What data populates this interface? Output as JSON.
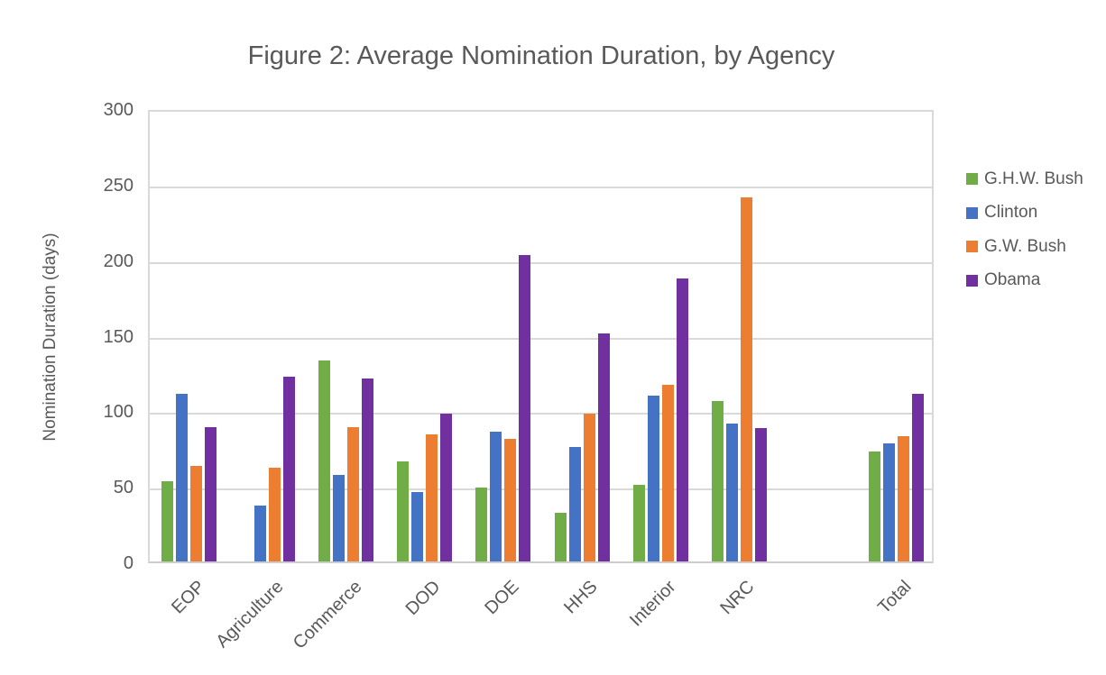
{
  "title": "Figure 2: Average Nomination Duration, by Agency",
  "chart_data": {
    "type": "bar",
    "title": "Figure 2: Average Nomination Duration, by Agency",
    "xlabel": "",
    "ylabel": "Nomination Duration (days)",
    "ylim": [
      0,
      300
    ],
    "yticks": [
      0,
      50,
      100,
      150,
      200,
      250,
      300
    ],
    "grid": true,
    "legend_position": "right",
    "categories": [
      "EOP",
      "Agriculture",
      "Commerce",
      "DOD",
      "DOE",
      "HHS",
      "Interior",
      "NRC",
      "",
      "Total"
    ],
    "series": [
      {
        "name": "G.H.W. Bush",
        "color": "#70AD47",
        "values": [
          53,
          null,
          133,
          66,
          49,
          32,
          51,
          106,
          null,
          73
        ]
      },
      {
        "name": "Clinton",
        "color": "#4472C4",
        "values": [
          111,
          37,
          57,
          46,
          86,
          76,
          110,
          91,
          null,
          78
        ]
      },
      {
        "name": "G.W. Bush",
        "color": "#ED7D31",
        "values": [
          63,
          62,
          89,
          84,
          81,
          98,
          117,
          241,
          null,
          83
        ]
      },
      {
        "name": "Obama",
        "color": "#7030A0",
        "values": [
          89,
          122,
          121,
          98,
          203,
          151,
          187,
          88,
          null,
          111
        ]
      }
    ]
  },
  "colors": {
    "text": "#595959",
    "gridline": "#D9D9D9",
    "background": "#FFFFFF"
  }
}
